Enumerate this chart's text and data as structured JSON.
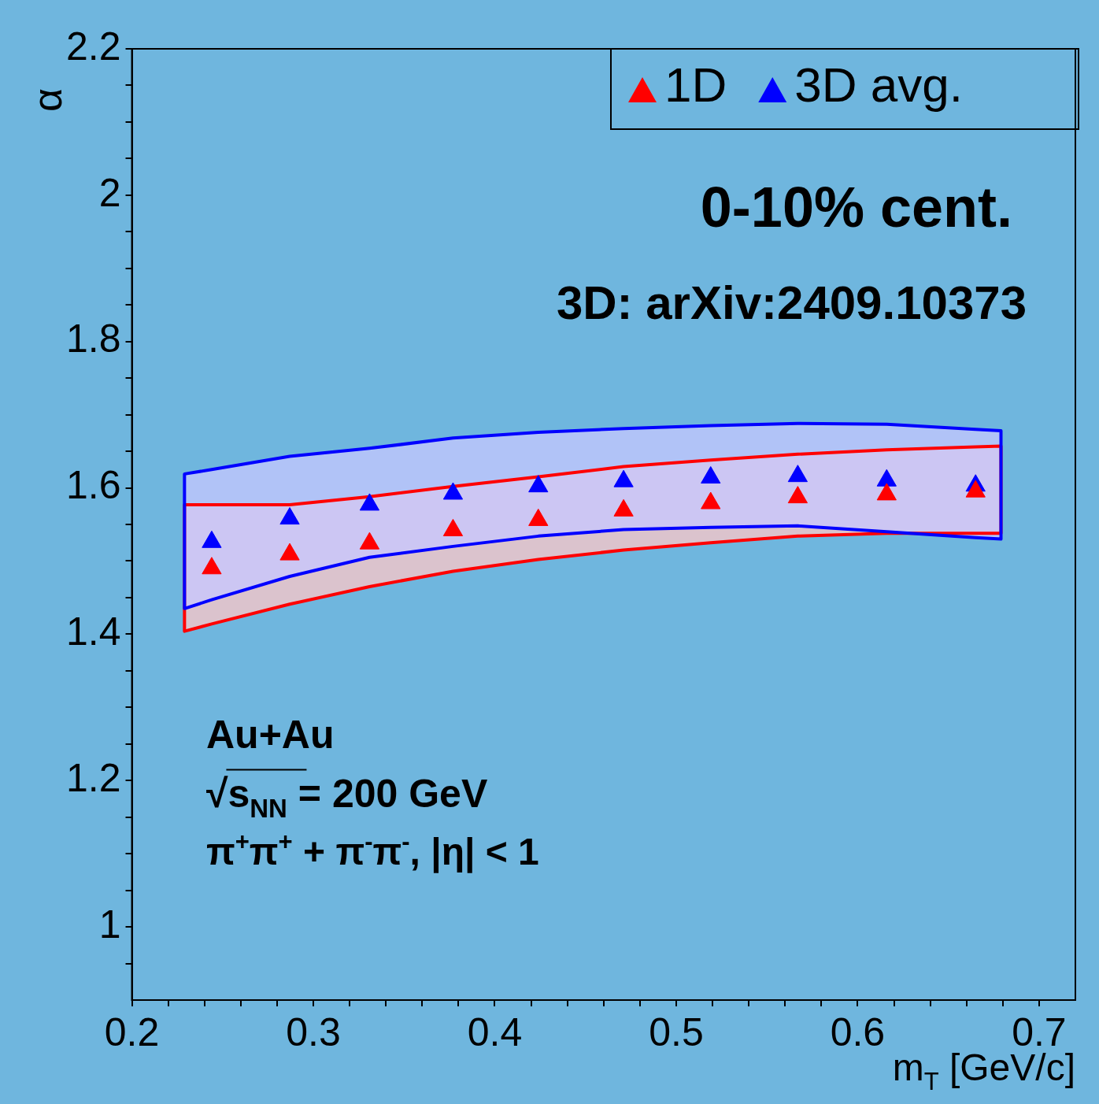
{
  "chart_data": {
    "type": "scatter",
    "xlabel": "m$_{T}$ [GeV/c]",
    "ylabel": "α",
    "xlim": [
      0.2,
      0.72
    ],
    "ylim": [
      0.9,
      2.2
    ],
    "xticks": [
      0.2,
      {
        "value": 0.22,
        "label": null
      },
      {
        "value": 0.24,
        "label": null
      },
      {
        "value": 0.26,
        "label": null
      },
      {
        "value": 0.28,
        "label": null
      },
      0.3,
      {
        "value": 0.32,
        "label": null
      },
      {
        "value": 0.34,
        "label": null
      },
      {
        "value": 0.36,
        "label": null
      },
      {
        "value": 0.38,
        "label": null
      },
      0.4,
      {
        "value": 0.42,
        "label": null
      },
      {
        "value": 0.44,
        "label": null
      },
      {
        "value": 0.46,
        "label": null
      },
      {
        "value": 0.48,
        "label": null
      },
      0.5,
      {
        "value": 0.52,
        "label": null
      },
      {
        "value": 0.54,
        "label": null
      },
      {
        "value": 0.56,
        "label": null
      },
      {
        "value": 0.58,
        "label": null
      },
      0.6,
      {
        "value": 0.62,
        "label": null
      },
      {
        "value": 0.64,
        "label": null
      },
      {
        "value": 0.66,
        "label": null
      },
      {
        "value": 0.68,
        "label": null
      },
      0.7
    ],
    "yticks": [
      {
        "value": 0.95,
        "label": null
      },
      1,
      {
        "value": 1.05,
        "label": null
      },
      {
        "value": 1.1,
        "label": null
      },
      {
        "value": 1.15,
        "label": null
      },
      1.2,
      {
        "value": 1.25,
        "label": null
      },
      {
        "value": 1.3,
        "label": null
      },
      {
        "value": 1.35,
        "label": null
      },
      1.4,
      {
        "value": 1.45,
        "label": null
      },
      {
        "value": 1.5,
        "label": null
      },
      {
        "value": 1.55,
        "label": null
      },
      1.6,
      {
        "value": 1.65,
        "label": null
      },
      {
        "value": 1.7,
        "label": null
      },
      {
        "value": 1.75,
        "label": null
      },
      1.8,
      {
        "value": 1.85,
        "label": null
      },
      {
        "value": 1.9,
        "label": null
      },
      {
        "value": 1.95,
        "label": null
      },
      2,
      {
        "value": 2.05,
        "label": null
      },
      {
        "value": 2.1,
        "label": null
      },
      {
        "value": 2.15,
        "label": null
      },
      2.2
    ],
    "series": [
      {
        "name": "1D",
        "color": "#ff0000",
        "x": [
          0.229,
          0.244,
          0.287,
          0.331,
          0.377,
          0.424,
          0.471,
          0.519,
          0.567,
          0.616,
          0.665,
          0.679
        ],
        "values": [
          null,
          1.49,
          1.509,
          1.524,
          1.542,
          1.556,
          1.569,
          1.579,
          1.587,
          1.591,
          1.595,
          null
        ],
        "lower": [
          1.404,
          1.414,
          1.441,
          1.465,
          1.486,
          1.502,
          1.515,
          1.525,
          1.534,
          1.538,
          1.538,
          1.538
        ],
        "upper": [
          1.577,
          1.577,
          1.577,
          1.588,
          1.602,
          1.615,
          1.629,
          1.638,
          1.646,
          1.652,
          1.656,
          1.657
        ]
      },
      {
        "name": "3D avg.",
        "color": "#0000ff",
        "x": [
          0.229,
          0.244,
          0.287,
          0.331,
          0.377,
          0.424,
          0.471,
          0.519,
          0.567,
          0.616,
          0.665,
          0.679
        ],
        "values": [
          null,
          1.526,
          1.558,
          1.577,
          1.592,
          1.602,
          1.609,
          1.614,
          1.616,
          1.61,
          1.603,
          null
        ],
        "lower": [
          1.435,
          1.447,
          1.479,
          1.505,
          1.52,
          1.534,
          1.543,
          1.546,
          1.548,
          1.54,
          1.532,
          1.53
        ],
        "upper": [
          1.619,
          1.625,
          1.643,
          1.654,
          1.668,
          1.676,
          1.681,
          1.685,
          1.688,
          1.687,
          1.68,
          1.678
        ]
      }
    ],
    "marker": "triangle",
    "legend": "top right",
    "grid": false,
    "annotations": [
      "0-10% cent.",
      "3D: arXiv:2409.10373",
      "Au+Au",
      "√s$_{NN}$ = 200 GeV",
      "π$^{+}$π$^{+}$ + π$^{-}$π$^{-}$, |η| < 1"
    ]
  }
}
